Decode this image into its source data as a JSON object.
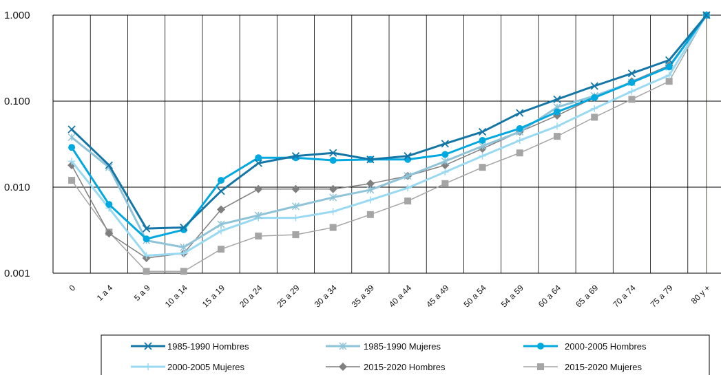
{
  "chart_data": {
    "type": "line",
    "title": "",
    "xlabel": "",
    "ylabel": "",
    "yscale": "log",
    "ylim": [
      0.001,
      1.0
    ],
    "yticks": [
      "0.001",
      "0.010",
      "0.100",
      "1.000"
    ],
    "grid": "vertical and horizontal",
    "legend_position": "bottom",
    "categories": [
      "0",
      "1 a 4",
      "5 a 9",
      "10 a 14",
      "15 a 19",
      "20 a 24",
      "25 a 29",
      "30 a 34",
      "35 a 39",
      "40 a 44",
      "45 a 49",
      "50 a 54",
      "54 a 59",
      "60 a 64",
      "65 a 69",
      "70 a 74",
      "75 a 79",
      "80 y +"
    ],
    "series": [
      {
        "name": "1985-1990 Hombres",
        "color": "#1476a6",
        "marker": "x",
        "width": 3,
        "values": [
          0.047,
          0.018,
          0.0033,
          0.0034,
          0.009,
          0.019,
          0.023,
          0.025,
          0.021,
          0.023,
          0.032,
          0.044,
          0.073,
          0.105,
          0.15,
          0.21,
          0.3,
          1.0
        ]
      },
      {
        "name": "1985-1990 Mujeres",
        "color": "#8ec3d8",
        "marker": "asterisk",
        "width": 3,
        "values": [
          0.038,
          0.017,
          0.0024,
          0.002,
          0.0037,
          0.0047,
          0.006,
          0.0076,
          0.0093,
          0.0135,
          0.02,
          0.03,
          0.044,
          0.085,
          0.115,
          0.165,
          0.25,
          1.0
        ]
      },
      {
        "name": "2000-2005 Hombres",
        "color": "#00a8e0",
        "marker": "circle",
        "width": 3,
        "values": [
          0.029,
          0.0063,
          0.0025,
          0.0032,
          0.012,
          0.022,
          0.022,
          0.0205,
          0.021,
          0.021,
          0.024,
          0.035,
          0.048,
          0.075,
          0.11,
          0.165,
          0.25,
          1.0
        ]
      },
      {
        "name": "2000-2005 Mujeres",
        "color": "#99d9f2",
        "marker": "plus",
        "width": 3,
        "values": [
          0.02,
          0.0057,
          0.0016,
          0.0017,
          0.0031,
          0.0044,
          0.0044,
          0.0052,
          0.0071,
          0.0098,
          0.015,
          0.023,
          0.035,
          0.051,
          0.082,
          0.13,
          0.2,
          1.0
        ]
      },
      {
        "name": "2015-2020 Hombres",
        "color": "#7f7f7f",
        "marker": "diamond",
        "width": 1.5,
        "values": [
          0.018,
          0.0029,
          0.0015,
          0.0017,
          0.0055,
          0.0095,
          0.0095,
          0.0095,
          0.011,
          0.0135,
          0.018,
          0.028,
          0.044,
          0.068,
          0.11,
          0.17,
          0.26,
          1.0
        ]
      },
      {
        "name": "2015-2020 Mujeres",
        "color": "#a5a5a5",
        "marker": "square",
        "width": 1.5,
        "values": [
          0.012,
          0.003,
          0.00105,
          0.00105,
          0.0019,
          0.0027,
          0.0028,
          0.0034,
          0.0048,
          0.0069,
          0.011,
          0.017,
          0.025,
          0.039,
          0.065,
          0.105,
          0.17,
          1.0
        ]
      }
    ]
  }
}
